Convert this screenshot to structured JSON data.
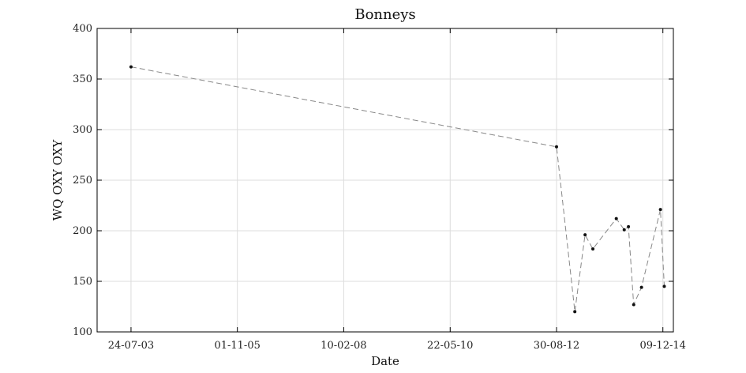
{
  "chart_data": {
    "type": "line",
    "title": "Bonneys",
    "xlabel": "Date",
    "ylabel": "WQ OXY OXY",
    "ylim": [
      100,
      400
    ],
    "yticks": [
      100,
      150,
      200,
      250,
      300,
      350,
      400
    ],
    "xlim": [
      "2002-11-01",
      "2015-03-01"
    ],
    "xticks": [
      {
        "date": "2003-07-24",
        "label": "24-07-03"
      },
      {
        "date": "2005-11-01",
        "label": "01-11-05"
      },
      {
        "date": "2008-02-10",
        "label": "10-02-08"
      },
      {
        "date": "2010-05-22",
        "label": "22-05-10"
      },
      {
        "date": "2012-08-30",
        "label": "30-08-12"
      },
      {
        "date": "2014-12-09",
        "label": "09-12-14"
      }
    ],
    "grid": true,
    "series": [
      {
        "line_style": "dashed",
        "color": "#888888",
        "marker_color": "#111111",
        "points": [
          {
            "x": "2003-07-24",
            "y": 362
          },
          {
            "x": "2012-08-30",
            "y": 283
          },
          {
            "x": "2013-01-20",
            "y": 120
          },
          {
            "x": "2013-04-10",
            "y": 196
          },
          {
            "x": "2013-06-10",
            "y": 182
          },
          {
            "x": "2013-12-10",
            "y": 212
          },
          {
            "x": "2014-02-10",
            "y": 201
          },
          {
            "x": "2014-03-15",
            "y": 204
          },
          {
            "x": "2014-04-25",
            "y": 127
          },
          {
            "x": "2014-06-25",
            "y": 144
          },
          {
            "x": "2014-11-20",
            "y": 221
          },
          {
            "x": "2014-12-20",
            "y": 145
          }
        ]
      }
    ]
  }
}
